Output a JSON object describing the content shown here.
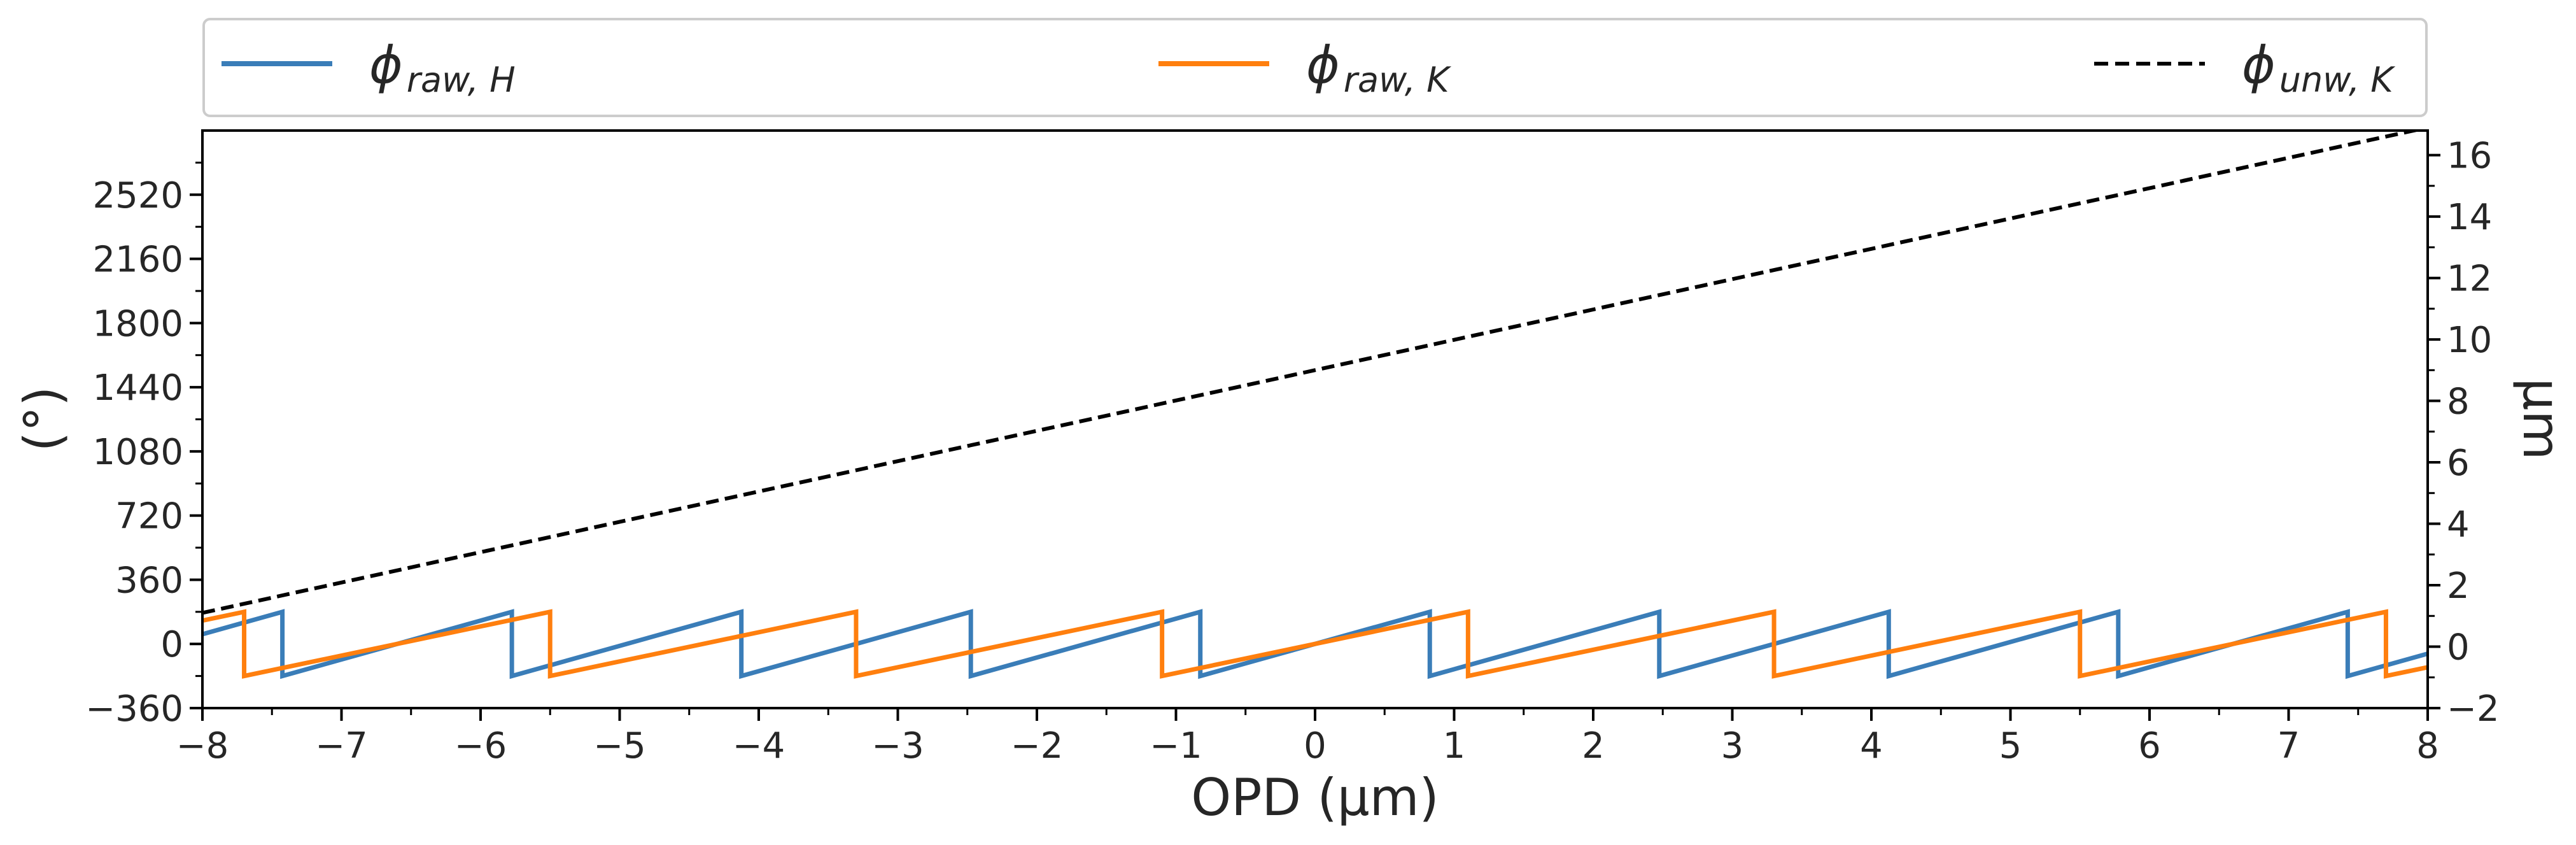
{
  "chart_data": {
    "type": "line",
    "title": "",
    "xlabel": "OPD (μm)",
    "ylabel_left": "(°)",
    "ylabel_right": "μm",
    "xlim": [
      -8,
      8
    ],
    "ylim_left": [
      -360,
      2880
    ],
    "ylim_right": [
      -2.0,
      16.8
    ],
    "x_ticks": [
      -8,
      -7,
      -6,
      -5,
      -4,
      -3,
      -2,
      -1,
      0,
      1,
      2,
      3,
      4,
      5,
      6,
      7,
      8
    ],
    "x_tick_labels": [
      "−8",
      "−7",
      "−6",
      "−5",
      "−4",
      "−3",
      "−2",
      "−1",
      "0",
      "1",
      "2",
      "3",
      "4",
      "5",
      "6",
      "7",
      "8"
    ],
    "y_left_ticks": [
      -360,
      0,
      360,
      720,
      1080,
      1440,
      1800,
      2160,
      2520
    ],
    "y_left_tick_labels": [
      "−360",
      "0",
      "360",
      "720",
      "1080",
      "1440",
      "1800",
      "2160",
      "2520"
    ],
    "y_right_ticks": [
      -2,
      0,
      2,
      4,
      6,
      8,
      10,
      12,
      14,
      16
    ],
    "y_right_tick_labels": [
      "−2",
      "0",
      "2",
      "4",
      "6",
      "8",
      "10",
      "12",
      "14",
      "16"
    ],
    "legend_position": "top, outside, expanded",
    "series": [
      {
        "name": "phi_raw_H",
        "legend_symbol": "ϕ",
        "legend_subscript": "raw, H",
        "color": "#3a7db8",
        "dash": "solid",
        "axis": "left",
        "wrapped_phase": true,
        "wavelength_um": 1.65,
        "wrap_range_deg": [
          -180,
          180
        ]
      },
      {
        "name": "phi_raw_K",
        "legend_symbol": "ϕ",
        "legend_subscript": "raw, K",
        "color": "#ff7f0e",
        "dash": "solid",
        "axis": "left",
        "wrapped_phase": true,
        "wavelength_um": 2.2,
        "wrap_range_deg": [
          -180,
          180
        ]
      },
      {
        "name": "phi_unw_K",
        "legend_symbol": "ϕ",
        "legend_subscript": "unw, K",
        "color": "#000000",
        "dash": "dashed",
        "axis": "right",
        "x": [
          -8,
          8
        ],
        "y": [
          1.1,
          16.9
        ]
      }
    ]
  }
}
